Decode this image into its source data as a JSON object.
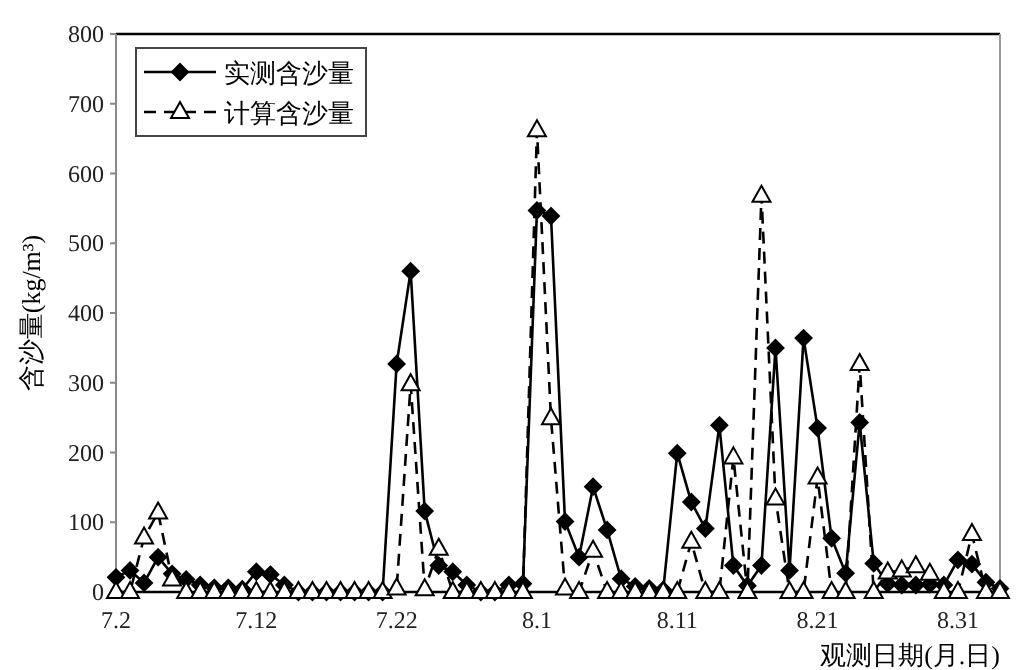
{
  "chart_data": {
    "type": "line",
    "xlabel": "观测日期(月.日)",
    "ylabel": "含沙量(kg/m³)",
    "x": [
      "--07-02",
      "--07-03",
      "--07-04",
      "--07-05",
      "--07-06",
      "--07-07",
      "--07-08",
      "--07-09",
      "--07-10",
      "--07-11",
      "--07-12",
      "--07-13",
      "--07-14",
      "--07-15",
      "--07-16",
      "--07-17",
      "--07-18",
      "--07-19",
      "--07-20",
      "--07-21",
      "--07-22",
      "--07-23",
      "--07-24",
      "--07-25",
      "--07-26",
      "--07-27",
      "--07-28",
      "--07-29",
      "--07-30",
      "--07-31",
      "--08-01",
      "--08-02",
      "--08-03",
      "--08-04",
      "--08-05",
      "--08-06",
      "--08-07",
      "--08-08",
      "--08-09",
      "--08-10",
      "--08-11",
      "--08-12",
      "--08-13",
      "--08-14",
      "--08-15",
      "--08-16",
      "--08-17",
      "--08-18",
      "--08-19",
      "--08-20",
      "--08-21",
      "--08-22",
      "--08-23",
      "--08-24",
      "--08-25",
      "--08-26",
      "--08-27",
      "--08-28",
      "--08-29",
      "--08-30",
      "--08-31",
      "--09-01",
      "--09-02",
      "--09-03"
    ],
    "series": [
      {
        "name": "实测含沙量",
        "color": "#000000",
        "marker": "diamond",
        "line_style": "solid",
        "values": [
          21,
          31,
          13,
          50,
          26,
          18,
          10,
          6,
          6,
          4,
          29,
          25,
          10,
          0,
          0,
          0,
          0,
          0,
          0,
          0,
          327,
          460,
          116,
          38,
          29,
          10,
          0,
          0,
          10,
          12,
          547,
          539,
          101,
          50,
          151,
          89,
          19,
          8,
          5,
          3,
          199,
          129,
          91,
          239,
          38,
          9,
          38,
          350,
          31,
          364,
          235,
          77,
          27,
          243,
          41,
          12,
          10,
          10,
          11,
          10,
          46,
          40,
          14,
          5
        ]
      },
      {
        "name": "计算含沙量",
        "color": "#000000",
        "marker": "triangle",
        "line_style": "dashed",
        "values": [
          0,
          0,
          78,
          114,
          18,
          0,
          0,
          0,
          0,
          0,
          0,
          0,
          0,
          0,
          0,
          0,
          0,
          0,
          0,
          0,
          5,
          298,
          4,
          62,
          0,
          0,
          0,
          0,
          0,
          0,
          662,
          249,
          5,
          0,
          59,
          0,
          0,
          0,
          0,
          0,
          0,
          72,
          0,
          0,
          193,
          0,
          568,
          134,
          0,
          0,
          164,
          0,
          0,
          327,
          0,
          28,
          31,
          37,
          26,
          0,
          0,
          83,
          0,
          0
        ]
      }
    ],
    "xlim": [
      "--07-02",
      "--09-03"
    ],
    "xticks": [
      {
        "value": "--07-02",
        "label": "7.2"
      },
      {
        "value": "--07-12",
        "label": "7.12"
      },
      {
        "value": "--07-22",
        "label": "7.22"
      },
      {
        "value": "--08-01",
        "label": "8.1"
      },
      {
        "value": "--08-11",
        "label": "8.11"
      },
      {
        "value": "--08-21",
        "label": "8.21"
      },
      {
        "value": "--08-31",
        "label": "8.31"
      }
    ],
    "ylim": [
      0,
      800
    ],
    "yticks": [
      0,
      100,
      200,
      300,
      400,
      500,
      600,
      700,
      800
    ],
    "grid": false,
    "legend": "top left"
  }
}
